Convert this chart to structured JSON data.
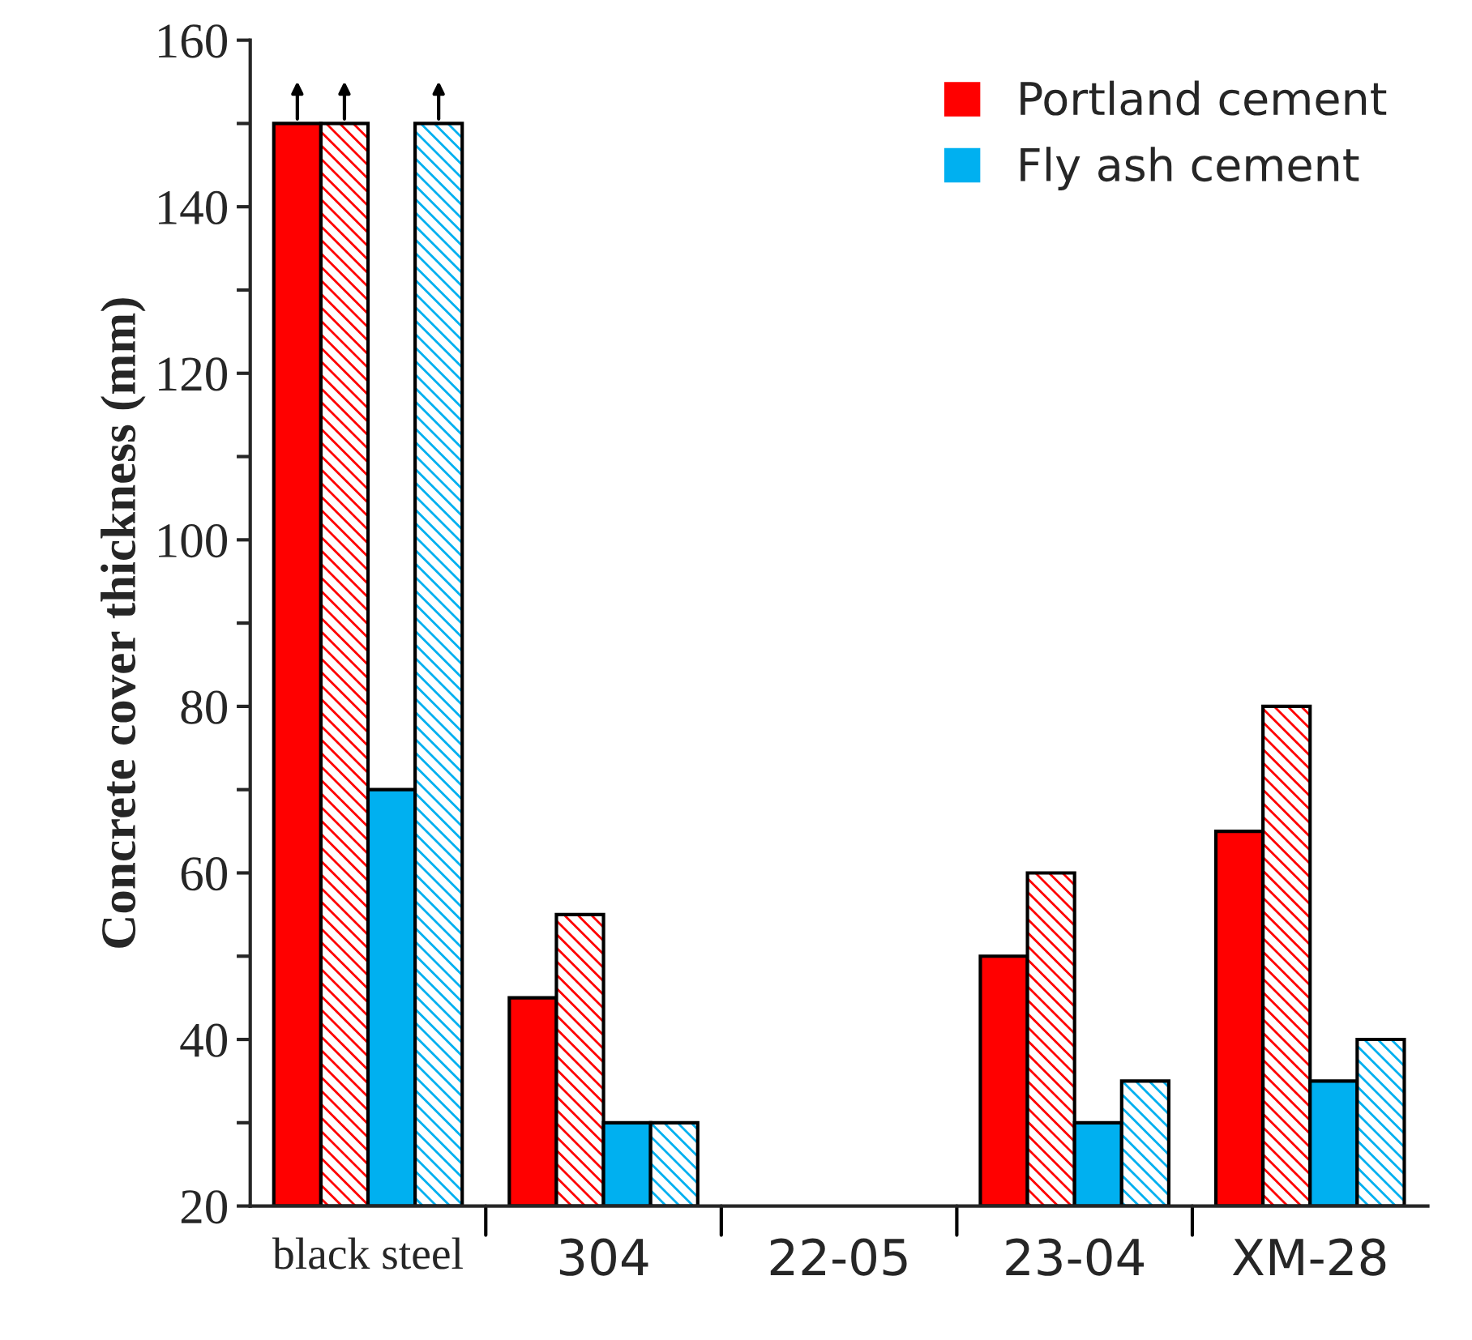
{
  "chart_data": {
    "type": "bar",
    "ylabel": "Concrete cover thickness (mm)",
    "categories": [
      "black steel",
      "304",
      "22-05",
      "23-04",
      "XM-28"
    ],
    "series": [
      {
        "name": "Portland cement",
        "color": "#ff0000",
        "values": [
          150,
          45,
          null,
          50,
          65
        ]
      },
      {
        "color": "#ff0000",
        "values": [
          150,
          55,
          null,
          60,
          80
        ]
      },
      {
        "name": "Fly ash cement",
        "color": "#00b0f0",
        "values": [
          70,
          30,
          null,
          30,
          35
        ]
      },
      {
        "color": "#00b0f0",
        "values": [
          150,
          30,
          null,
          35,
          40
        ]
      }
    ],
    "ylim": [
      20,
      160
    ],
    "yticks": [
      20,
      {
        "value": 30,
        "label": null
      },
      40,
      {
        "value": 50,
        "label": null
      },
      60,
      {
        "value": 70,
        "label": null
      },
      80,
      {
        "value": 90,
        "label": null
      },
      100,
      {
        "value": 110,
        "label": null
      },
      120,
      {
        "value": 130,
        "label": null
      },
      140,
      {
        "value": 150,
        "label": null
      },
      160
    ],
    "legend": "top right",
    "grid": false
  }
}
